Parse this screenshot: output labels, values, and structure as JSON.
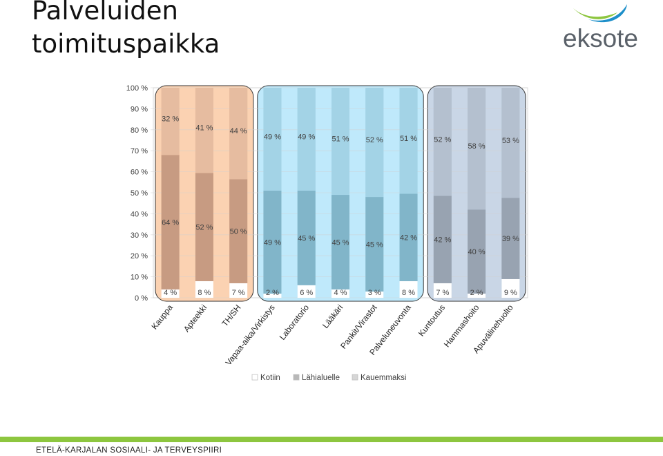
{
  "slide": {
    "title": "Palveluiden toimituspaikka",
    "logo_text": "eksote",
    "footer": "ETELÄ-KARJALAN SOSIAALI- JA TERVEYSPIIRI"
  },
  "colors": {
    "logo_green": "#8dc63f",
    "logo_blue": "#1d8fc9",
    "logo_text": "#5a6169",
    "footer_bar": "#8dc63f"
  },
  "chart_data": {
    "type": "bar",
    "stacked": true,
    "percent_stacked": true,
    "categories": [
      "Kauppa",
      "Apteekki",
      "TH/SH",
      "Vapaa-aika/Virkistys",
      "Laboratorio",
      "Lääkäri",
      "Pankit/Virastot",
      "Palveluneuvonta",
      "Kuntoutus",
      "Hammashoito",
      "Apuvälinehuolto"
    ],
    "series": [
      {
        "name": "Kotiin",
        "values": [
          4,
          8,
          7,
          2,
          6,
          4,
          3,
          8,
          7,
          2,
          9
        ],
        "labels": [
          "4 %",
          "8 %",
          "7 %",
          "2 %",
          "6 %",
          "4 %",
          "3 %",
          "8 %",
          "7 %",
          "2 %",
          "9 %"
        ]
      },
      {
        "name": "Lähialuelle",
        "values": [
          64,
          52,
          50,
          49,
          45,
          45,
          45,
          42,
          42,
          40,
          39
        ],
        "labels": [
          "64 %",
          "52 %",
          "50 %",
          "49 %",
          "45 %",
          "45 %",
          "45 %",
          "42 %",
          "42 %",
          "40 %",
          "39 %"
        ]
      },
      {
        "name": "Kauemmaksi",
        "values": [
          32,
          41,
          44,
          49,
          49,
          51,
          52,
          51,
          52,
          58,
          53
        ],
        "labels": [
          "32 %",
          "41 %",
          "44 %",
          "49 %",
          "49 %",
          "51 %",
          "52 %",
          "51 %",
          "52 %",
          "58 %",
          "53 %"
        ]
      }
    ],
    "y_ticks": [
      "0 %",
      "10 %",
      "20 %",
      "30 %",
      "40 %",
      "50 %",
      "60 %",
      "70 %",
      "80 %",
      "90 %",
      "100 %"
    ],
    "ylim": [
      0,
      100
    ],
    "groups": [
      {
        "from": 0,
        "to": 2,
        "fill": "#fbd2b2",
        "column": "#e3b79a",
        "bar_lower": "#c79b82",
        "bar_upper": "#e6bca0",
        "border": "#333333"
      },
      {
        "from": 3,
        "to": 7,
        "fill": "#bfe9fb",
        "column": "#9dcfe3",
        "bar_lower": "#81b5c9",
        "bar_upper": "#a3d3e6",
        "border": "#333333"
      },
      {
        "from": 8,
        "to": 10,
        "fill": "#c9d6e6",
        "column": "#b0bccc",
        "bar_lower": "#98a3b1",
        "bar_upper": "#b4c0cf",
        "border": "#333333"
      }
    ],
    "legend_position": "bottom",
    "grid": true
  }
}
